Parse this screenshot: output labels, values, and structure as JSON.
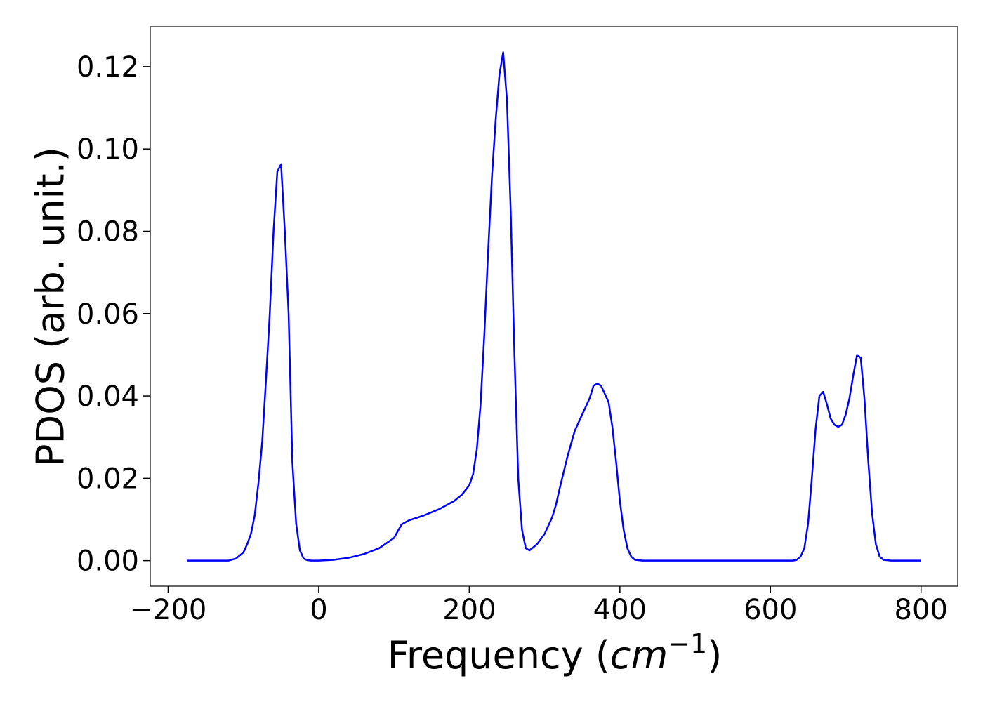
{
  "chart_data": {
    "type": "line",
    "xlabel": [
      "Frequency (",
      "cm",
      "−1",
      ")"
    ],
    "ylabel": "PDOS (arb. unit.)",
    "xlim": [
      -223.75,
      848.75
    ],
    "ylim": [
      -0.0062,
      0.1297
    ],
    "xticks": [
      {
        "value": -200,
        "label": "−200"
      },
      0,
      200,
      400,
      600,
      800
    ],
    "yticks": [
      {
        "value": 0,
        "label": "0.00"
      },
      {
        "value": 0.02,
        "label": "0.02"
      },
      {
        "value": 0.04,
        "label": "0.04"
      },
      {
        "value": 0.06,
        "label": "0.06"
      },
      {
        "value": 0.08,
        "label": "0.08"
      },
      {
        "value": 0.1,
        "label": "0.10"
      },
      {
        "value": 0.12,
        "label": "0.12"
      }
    ],
    "grid": false,
    "x": [
      -175,
      -120,
      -110,
      -100,
      -95,
      -90,
      -85,
      -80,
      -75,
      -70,
      -65,
      -60,
      -55,
      -50,
      -45,
      -40,
      -35,
      -30,
      -25,
      -20,
      -15,
      -10,
      0,
      20,
      40,
      60,
      80,
      100,
      110,
      120,
      140,
      160,
      180,
      190,
      200,
      205,
      210,
      215,
      220,
      225,
      230,
      235,
      240,
      245,
      250,
      255,
      260,
      265,
      270,
      275,
      280,
      290,
      300,
      310,
      315,
      320,
      330,
      340,
      350,
      360,
      365,
      370,
      375,
      380,
      385,
      390,
      395,
      400,
      405,
      410,
      415,
      420,
      430,
      630,
      635,
      640,
      645,
      650,
      655,
      660,
      665,
      670,
      675,
      680,
      685,
      690,
      695,
      700,
      705,
      710,
      715,
      720,
      725,
      730,
      735,
      740,
      745,
      750,
      760,
      800
    ],
    "series": [
      {
        "color": "#0000ff",
        "values": [
          0,
          0,
          0.0005,
          0.002,
          0.004,
          0.0065,
          0.011,
          0.019,
          0.029,
          0.044,
          0.06,
          0.08,
          0.0945,
          0.0963,
          0.08,
          0.06,
          0.024,
          0.009,
          0.0025,
          0.0005,
          0.0001,
          0,
          0,
          0.0002,
          0.0007,
          0.0016,
          0.003,
          0.0055,
          0.0088,
          0.0098,
          0.011,
          0.0125,
          0.0145,
          0.016,
          0.0183,
          0.021,
          0.027,
          0.038,
          0.055,
          0.075,
          0.093,
          0.107,
          0.118,
          0.1235,
          0.112,
          0.085,
          0.05,
          0.02,
          0.0075,
          0.003,
          0.0025,
          0.004,
          0.0065,
          0.0105,
          0.0135,
          0.0175,
          0.025,
          0.0315,
          0.0355,
          0.0395,
          0.0425,
          0.043,
          0.0425,
          0.0405,
          0.0385,
          0.0325,
          0.024,
          0.0145,
          0.0075,
          0.003,
          0.001,
          0.0002,
          0,
          0,
          0.0002,
          0.001,
          0.003,
          0.009,
          0.02,
          0.032,
          0.04,
          0.041,
          0.038,
          0.0345,
          0.033,
          0.0325,
          0.033,
          0.0355,
          0.0395,
          0.045,
          0.05,
          0.0492,
          0.039,
          0.024,
          0.0115,
          0.004,
          0.001,
          0.0002,
          0,
          0
        ]
      }
    ]
  }
}
